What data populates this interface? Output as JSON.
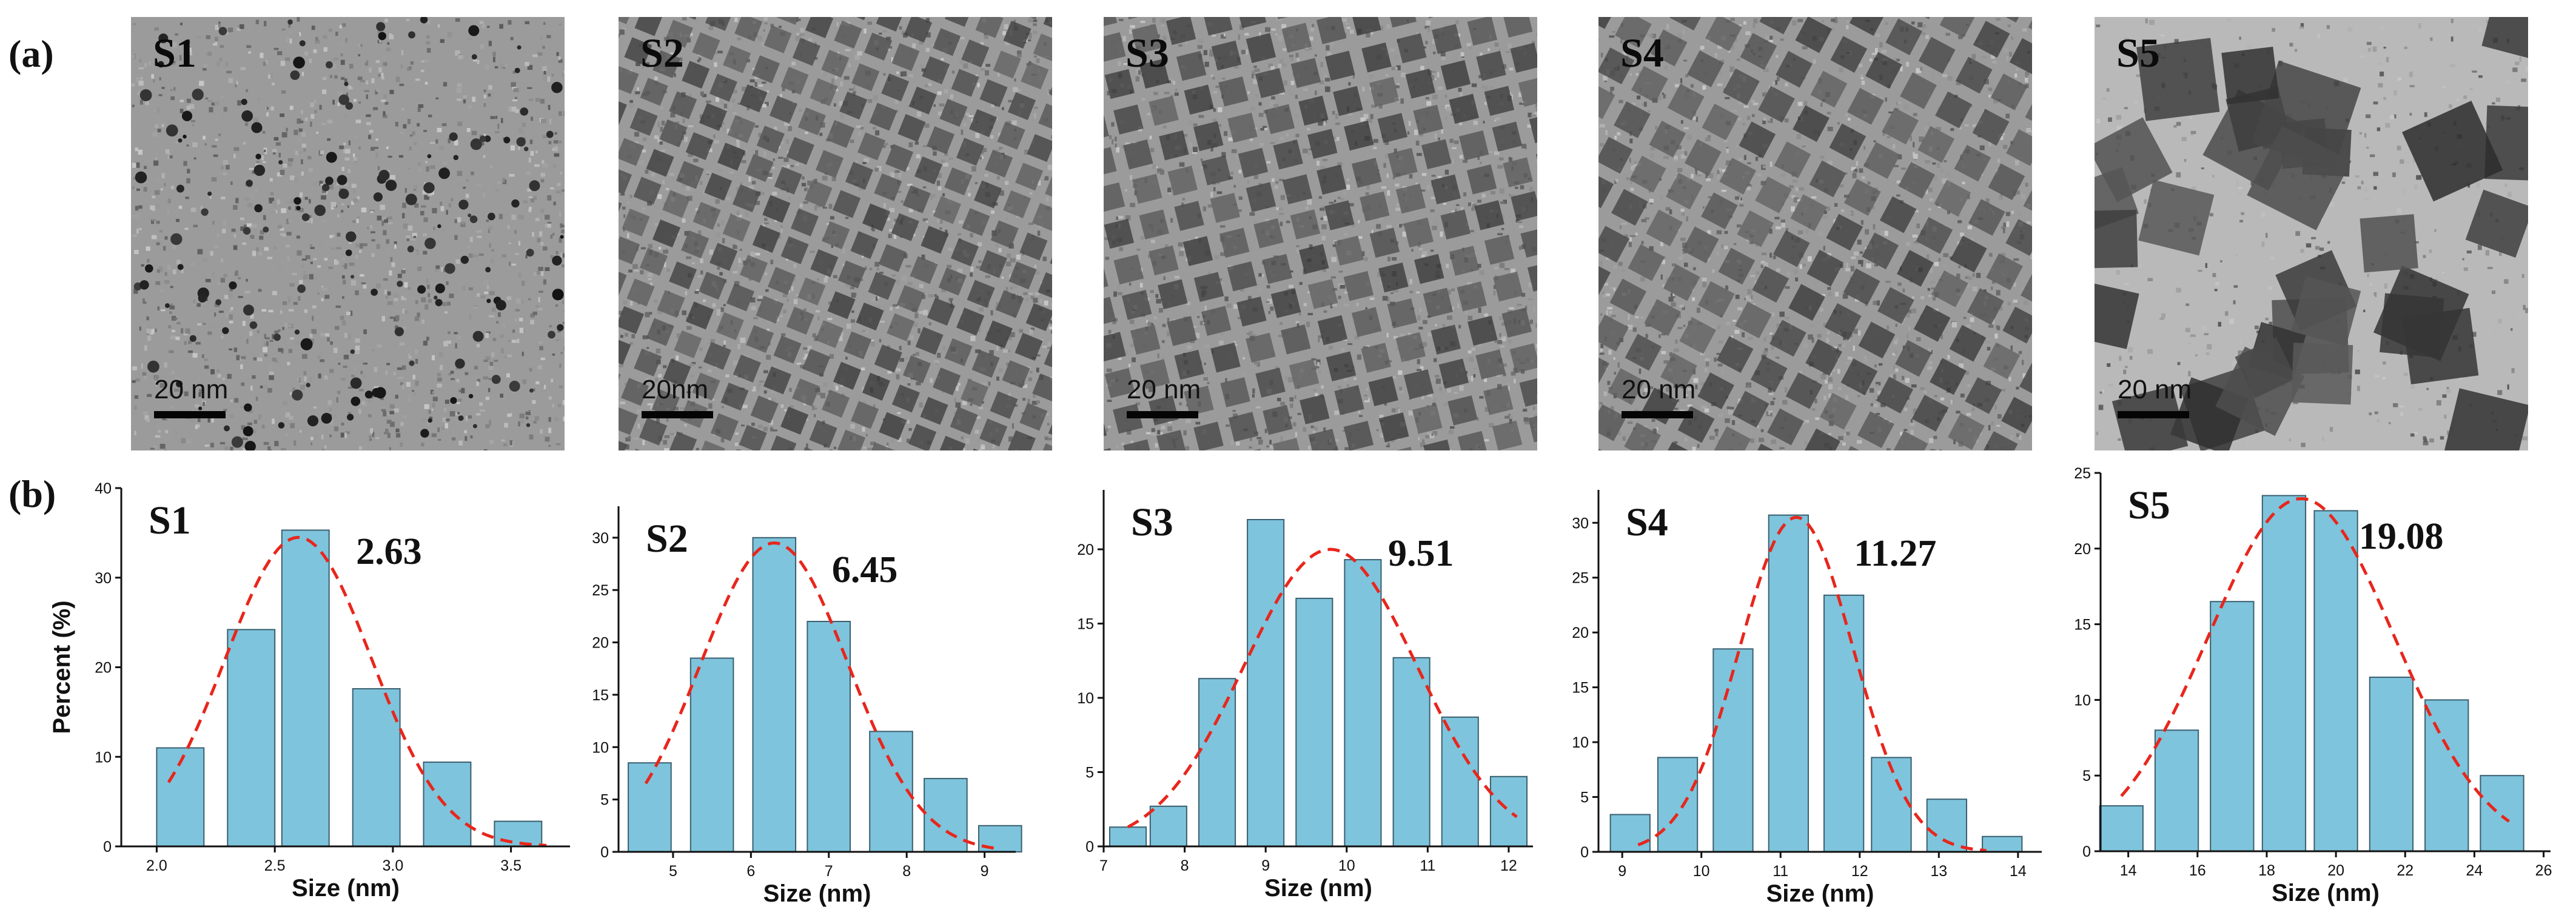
{
  "figure": {
    "panel_a_label": "(a)",
    "panel_b_label": "(b)"
  },
  "tem_panels": [
    {
      "label": "S1",
      "scale_text": "20 nm",
      "pattern": "dots"
    },
    {
      "label": "S2",
      "scale_text": "20nm",
      "pattern": "cubes"
    },
    {
      "label": "S3",
      "scale_text": "20 nm",
      "pattern": "cubes"
    },
    {
      "label": "S4",
      "scale_text": "20 nm",
      "pattern": "cubes"
    },
    {
      "label": "S5",
      "scale_text": "20 nm",
      "pattern": "large-cubes"
    }
  ],
  "colors": {
    "bar_fill": "#7ec4dc",
    "bar_edge": "#3a5f6f",
    "fit_line": "#e8261c"
  },
  "chart_data": [
    {
      "type": "bar",
      "name": "S1",
      "mean_label": "2.63",
      "xlabel": "Size (nm)",
      "ylabel": "Percent (%)",
      "xlim": [
        1.85,
        3.75
      ],
      "ylim": [
        0,
        40
      ],
      "xticks": [
        "2.0",
        "2.5",
        "3.0",
        "3.5"
      ],
      "xtick_values": [
        2.0,
        2.5,
        3.0,
        3.5
      ],
      "yticks": [
        "0",
        "10",
        "20",
        "30",
        "40"
      ],
      "ytick_values": [
        0,
        10,
        20,
        30,
        40
      ],
      "x": [
        2.1,
        2.4,
        2.63,
        2.93,
        3.23,
        3.53
      ],
      "values": [
        11,
        24.2,
        35.3,
        17.6,
        9.4,
        2.8
      ],
      "bar_width": 0.2,
      "fit": {
        "mean": 2.6,
        "sigma": 0.31,
        "amplitude": 34.5,
        "from": 2.05,
        "to": 3.65
      }
    },
    {
      "type": "bar",
      "name": "S2",
      "mean_label": "6.45",
      "xlabel": "Size (nm)",
      "ylabel": "",
      "xlim": [
        4.3,
        9.4
      ],
      "ylim": [
        0,
        33
      ],
      "xticks": [
        "5",
        "6",
        "7",
        "8",
        "9"
      ],
      "xtick_values": [
        5,
        6,
        7,
        8,
        9
      ],
      "yticks": [
        "0",
        "5",
        "10",
        "15",
        "20",
        "25",
        "30"
      ],
      "ytick_values": [
        0,
        5,
        10,
        15,
        20,
        25,
        30
      ],
      "x": [
        4.7,
        5.5,
        6.3,
        7.0,
        7.8,
        8.5,
        9.2
      ],
      "values": [
        8.5,
        18.5,
        30,
        22,
        11.5,
        7,
        2.5
      ],
      "bar_width": 0.55,
      "fit": {
        "mean": 6.3,
        "sigma": 0.95,
        "amplitude": 29.5,
        "from": 4.65,
        "to": 9.15
      }
    },
    {
      "type": "bar",
      "name": "S3",
      "mean_label": "9.51",
      "xlabel": "Size (nm)",
      "ylabel": "",
      "xlim": [
        7.0,
        12.3
      ],
      "ylim": [
        0,
        24
      ],
      "xticks": [
        "7",
        "8",
        "9",
        "10",
        "11",
        "12"
      ],
      "xtick_values": [
        7,
        8,
        9,
        10,
        11,
        12
      ],
      "yticks": [
        "0",
        "5",
        "10",
        "15",
        "20"
      ],
      "ytick_values": [
        0,
        5,
        10,
        15,
        20
      ],
      "x": [
        7.3,
        7.8,
        8.4,
        9.0,
        9.6,
        10.2,
        10.8,
        11.4,
        12.0
      ],
      "values": [
        1.3,
        2.7,
        11.3,
        22,
        16.7,
        19.3,
        12.7,
        8.7,
        4.7
      ],
      "bar_width": 0.45,
      "fit": {
        "mean": 9.8,
        "sigma": 1.07,
        "amplitude": 20,
        "from": 7.3,
        "to": 12.1
      }
    },
    {
      "type": "bar",
      "name": "S4",
      "mean_label": "11.27",
      "xlabel": "Size (nm)",
      "ylabel": "",
      "xlim": [
        8.7,
        14.3
      ],
      "ylim": [
        0,
        33
      ],
      "xticks": [
        "9",
        "10",
        "11",
        "12",
        "13",
        "14"
      ],
      "xtick_values": [
        9,
        10,
        11,
        12,
        13,
        14
      ],
      "yticks": [
        "0",
        "5",
        "10",
        "15",
        "20",
        "25",
        "30"
      ],
      "ytick_values": [
        0,
        5,
        10,
        15,
        20,
        25,
        30
      ],
      "x": [
        9.1,
        9.7,
        10.4,
        11.1,
        11.8,
        12.4,
        13.1,
        13.8
      ],
      "values": [
        3.4,
        8.6,
        18.5,
        30.7,
        23.4,
        8.6,
        4.8,
        1.4
      ],
      "bar_width": 0.5,
      "fit": {
        "mean": 11.2,
        "sigma": 0.72,
        "amplitude": 30.5,
        "from": 9.2,
        "to": 13.6
      }
    },
    {
      "type": "bar",
      "name": "S5",
      "mean_label": "19.08",
      "xlabel": "Size (nm)",
      "ylabel": "",
      "xlim": [
        13.2,
        26.2
      ],
      "ylim": [
        0,
        25
      ],
      "xticks": [
        "14",
        "16",
        "18",
        "20",
        "22",
        "24",
        "26"
      ],
      "xtick_values": [
        14,
        16,
        18,
        20,
        22,
        24,
        26
      ],
      "yticks": [
        "0",
        "5",
        "10",
        "15",
        "20",
        "25"
      ],
      "ytick_values": [
        0,
        5,
        10,
        15,
        20,
        25
      ],
      "x": [
        13.8,
        15.4,
        17.0,
        18.5,
        20.0,
        21.6,
        23.2,
        24.8
      ],
      "values": [
        3,
        8,
        16.5,
        23.5,
        22.5,
        11.5,
        10,
        5
      ],
      "bar_width": 1.25,
      "fit": {
        "mean": 19,
        "sigma": 2.7,
        "amplitude": 23.3,
        "from": 13.8,
        "to": 25.0
      }
    }
  ]
}
